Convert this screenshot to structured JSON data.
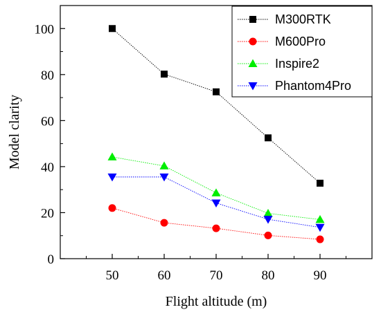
{
  "chart_data": {
    "type": "line",
    "xlabel": "Flight altitude (m)",
    "ylabel": "Model clarity",
    "x": [
      50,
      60,
      70,
      80,
      90
    ],
    "xlim": [
      40,
      100
    ],
    "ylim": [
      0,
      110
    ],
    "xticks": [
      50,
      60,
      70,
      80,
      90
    ],
    "yticks": [
      0,
      20,
      40,
      60,
      80,
      100
    ],
    "grid": false,
    "legend_position": "top-right",
    "series": [
      {
        "name": "M300RTK",
        "values": [
          100,
          80.2,
          72.5,
          52.5,
          32.8
        ],
        "color": "#000000",
        "marker": "square"
      },
      {
        "name": "M600Pro",
        "values": [
          22,
          15.6,
          13.2,
          10.1,
          8.4
        ],
        "color": "#ff0000",
        "marker": "circle"
      },
      {
        "name": "Inspire2",
        "values": [
          44.2,
          40.3,
          28.6,
          19.7,
          17
        ],
        "color": "#00ee00",
        "marker": "triangle-up"
      },
      {
        "name": "Phantom4Pro",
        "values": [
          35.5,
          35.5,
          24.2,
          17.1,
          13.6
        ],
        "color": "#0000ff",
        "marker": "triangle-down"
      }
    ]
  }
}
